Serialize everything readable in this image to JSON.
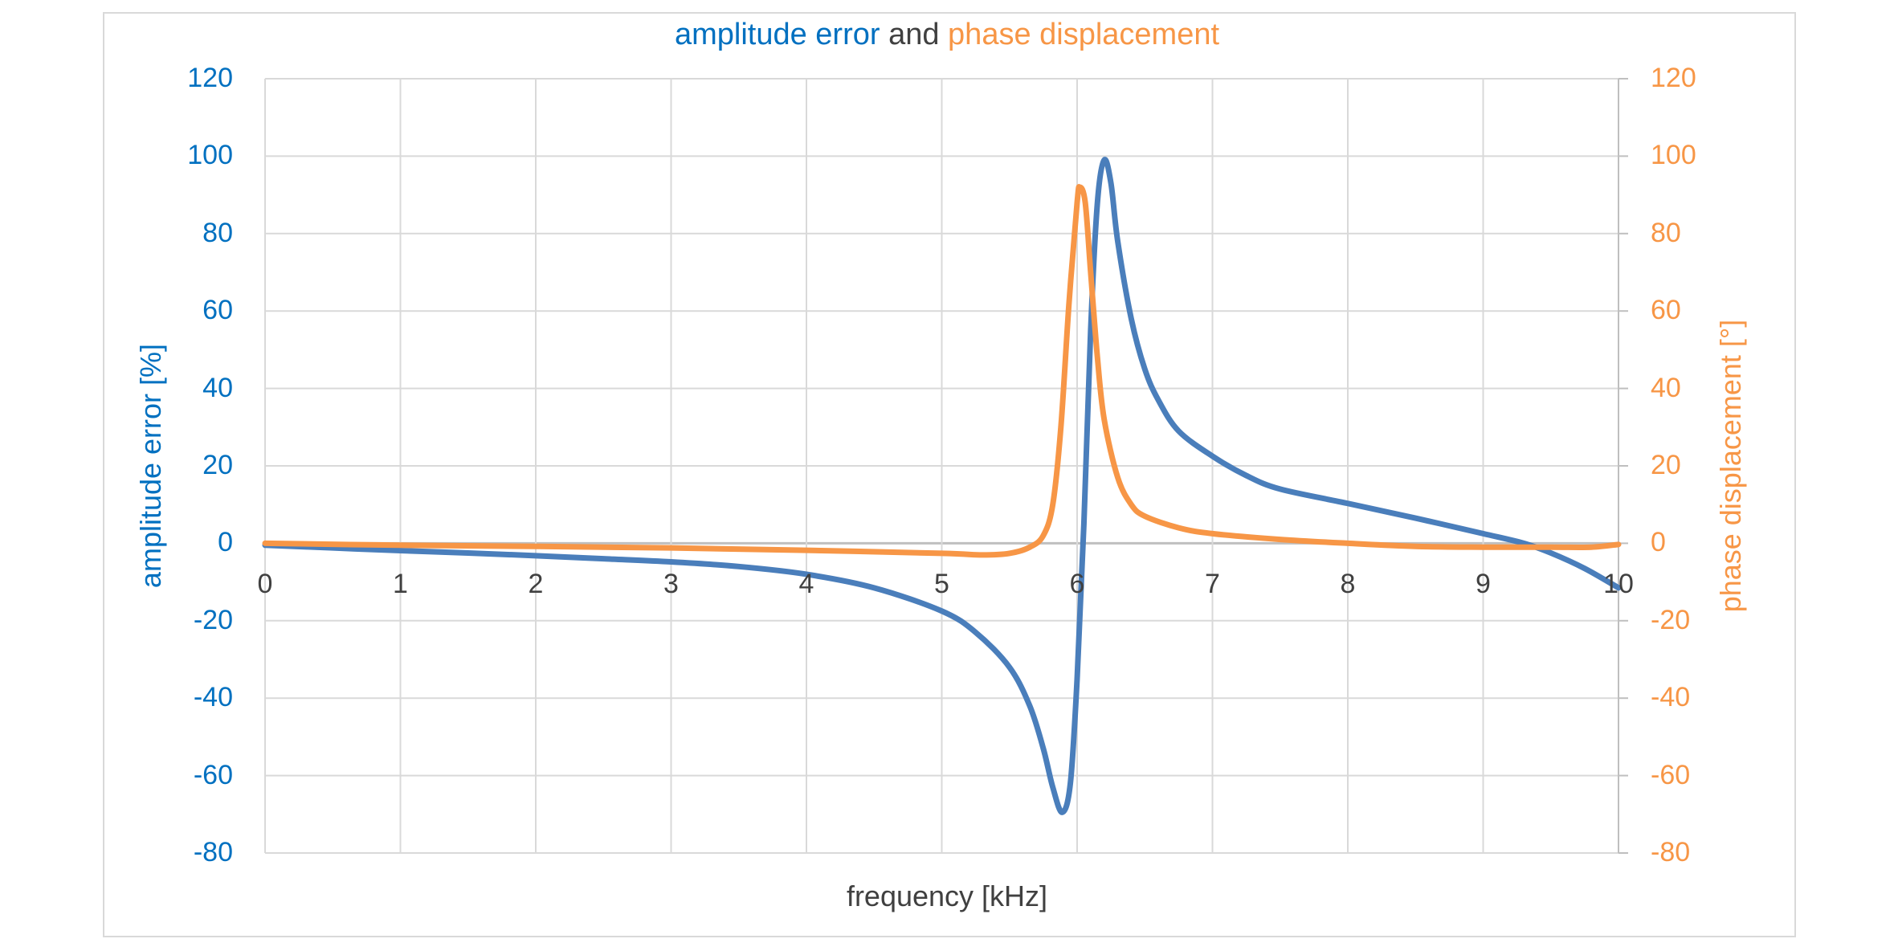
{
  "title": {
    "part1": "amplitude error",
    "part2": " and ",
    "part3": "phase displacement"
  },
  "axes": {
    "left_label": "amplitude error [%]",
    "right_label": "phase displacement [°]",
    "x_label": "frequency [kHz]",
    "left_ticks": [
      "120",
      "100",
      "80",
      "60",
      "40",
      "20",
      "0",
      "-20",
      "-40",
      "-60",
      "-80"
    ],
    "right_ticks": [
      "120",
      "100",
      "80",
      "60",
      "40",
      "20",
      "0",
      "-20",
      "-40",
      "-60",
      "-80"
    ],
    "x_ticks": [
      "0",
      "1",
      "2",
      "3",
      "4",
      "5",
      "6",
      "7",
      "8",
      "9",
      "10"
    ]
  },
  "colors": {
    "amplitude": "#4a7ebb",
    "phase": "#f79646",
    "amplitude_text": "#0070c0",
    "phase_text": "#f79646",
    "grid": "#d9d9d9",
    "zero_line": "#bfbfbf"
  },
  "chart_data": {
    "type": "line",
    "title": "amplitude error and phase displacement",
    "xlabel": "frequency [kHz]",
    "ylabel": "amplitude error [%]",
    "y2label": "phase displacement [°]",
    "xlim": [
      0,
      10
    ],
    "ylim": [
      -80,
      120
    ],
    "y2lim": [
      -80,
      120
    ],
    "grid": true,
    "legend": "none (title colored by series)",
    "series": [
      {
        "name": "amplitude error",
        "axis": "left",
        "color": "#4a7ebb",
        "x": [
          0,
          0.5,
          1,
          1.5,
          2,
          2.5,
          3,
          3.5,
          4,
          4.5,
          5,
          5.25,
          5.5,
          5.65,
          5.75,
          5.82,
          5.89,
          5.95,
          6.0,
          6.05,
          6.1,
          6.15,
          6.2,
          6.25,
          6.3,
          6.4,
          6.5,
          6.6,
          6.75,
          7,
          7.25,
          7.5,
          8,
          8.5,
          9,
          9.3,
          9.5,
          9.75,
          10
        ],
        "y": [
          -0.5,
          -1.2,
          -1.9,
          -2.5,
          -3.2,
          -4,
          -4.8,
          -6,
          -8,
          -11.5,
          -17.5,
          -23,
          -32,
          -42,
          -53,
          -63,
          -69.5,
          -62,
          -35,
          5,
          55,
          88,
          99,
          93,
          78,
          58,
          45,
          37,
          29,
          22.5,
          17.5,
          14,
          10.3,
          6.5,
          2.5,
          0,
          -2.5,
          -6.5,
          -11.5
        ]
      },
      {
        "name": "phase displacement",
        "axis": "right",
        "color": "#f79646",
        "x": [
          0,
          1,
          2,
          3,
          4,
          5,
          5.3,
          5.5,
          5.65,
          5.75,
          5.82,
          5.88,
          5.94,
          6.0,
          6.02,
          6.06,
          6.1,
          6.15,
          6.2,
          6.3,
          6.4,
          6.5,
          6.75,
          7,
          7.5,
          8,
          8.5,
          9,
          9.5,
          9.8,
          10
        ],
        "y": [
          0,
          -0.5,
          -0.8,
          -1.2,
          -1.8,
          -2.6,
          -3,
          -2.6,
          -1,
          2,
          10,
          30,
          62,
          88,
          92,
          88,
          70,
          48,
          32,
          17,
          10,
          7,
          4,
          2.5,
          1,
          0,
          -0.8,
          -1,
          -1,
          -1,
          -0.3
        ]
      }
    ]
  }
}
